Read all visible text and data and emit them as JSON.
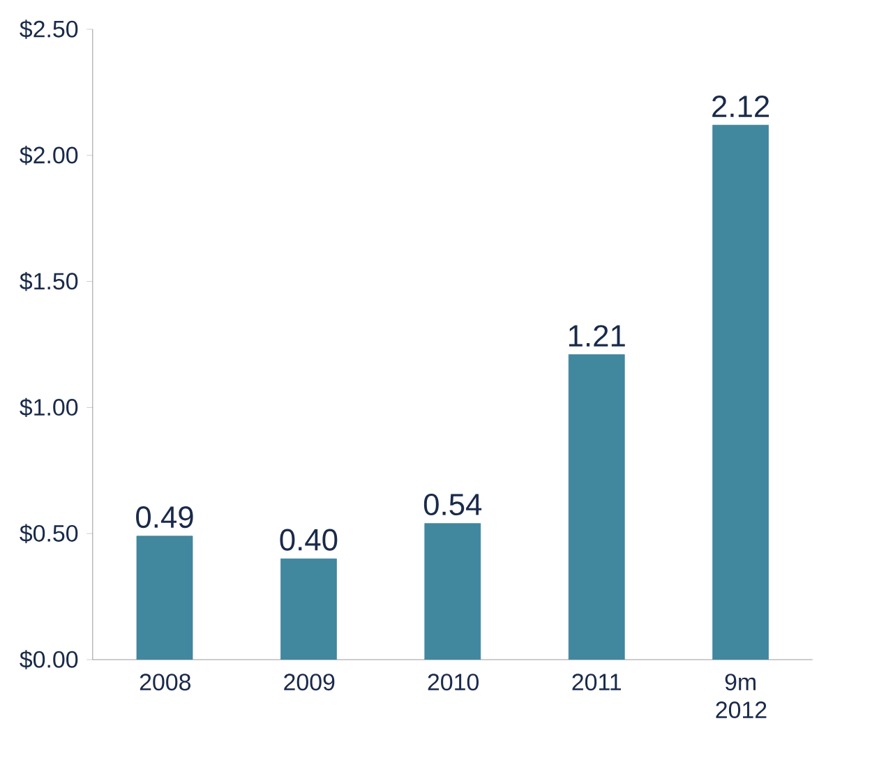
{
  "chart_data": {
    "type": "bar",
    "categories": [
      "2008",
      "2009",
      "2010",
      "2011",
      "9m 2012"
    ],
    "values": [
      0.49,
      0.4,
      0.54,
      1.21,
      2.12
    ],
    "colors": [
      "#41879e",
      "#41879e",
      "#41879e",
      "#41879e",
      "#41879e"
    ],
    "ylim": [
      0,
      2.5
    ],
    "yticks": [
      {
        "value": 0,
        "label": "$0.00"
      },
      {
        "value": 0.5,
        "label": "$0.50"
      },
      {
        "value": 1,
        "label": "$1.00"
      },
      {
        "value": 1.5,
        "label": "$1.50"
      },
      {
        "value": 2,
        "label": "$2.00"
      },
      {
        "value": 2.5,
        "label": "$2.50"
      }
    ],
    "value_labels": [
      "0.49",
      "0.40",
      "0.54",
      "1.21",
      "2.12"
    ],
    "grid": false
  }
}
